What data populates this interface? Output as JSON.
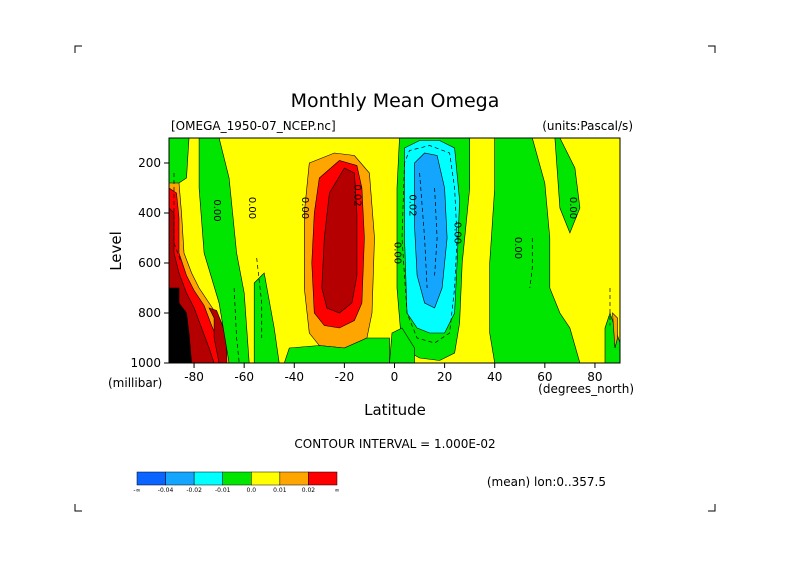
{
  "chart_data": {
    "type": "heatmap",
    "title": "Monthly Mean Omega",
    "dataset_label": "[OMEGA_1950-07_NCEP.nc]",
    "units_label": "(units:Pascal/s)",
    "xlabel": "Latitude",
    "x_units": "(degrees_north)",
    "ylabel": "Level",
    "y_units": "(millibar)",
    "x_range": [
      -90,
      90
    ],
    "y_range": [
      1000,
      100
    ],
    "y_reversed": true,
    "x_ticks": [
      -80,
      -60,
      -40,
      -20,
      0,
      20,
      40,
      60,
      80
    ],
    "y_ticks": [
      200,
      400,
      600,
      800,
      1000
    ],
    "contour_interval_text": "CONTOUR INTERVAL = 1.000E-02",
    "mean_note": "(mean) lon:0..357.5",
    "contour_labels": [
      {
        "text": "0.00",
        "lat": -72,
        "level": 390
      },
      {
        "text": "0.00",
        "lat": -58,
        "level": 380
      },
      {
        "text": "0.00",
        "lat": -37,
        "level": 380
      },
      {
        "text": "0.02",
        "lat": -16,
        "level": 330
      },
      {
        "text": "0.02",
        "lat": 6,
        "level": 370
      },
      {
        "text": "0.00",
        "lat": 24,
        "level": 480
      },
      {
        "text": "0.00",
        "lat": 0,
        "level": 560
      },
      {
        "text": "0.00",
        "lat": 48,
        "level": 540
      },
      {
        "text": "0.00",
        "lat": 70,
        "level": 380
      }
    ],
    "legend": {
      "colors": [
        "#0a64ff",
        "#14a5ff",
        "#00ffff",
        "#00e600",
        "#ffff00",
        "#ffa500",
        "#ff0000"
      ],
      "labels": [
        "-∞",
        "-0.04",
        "-0.02",
        "-0.01",
        "0.0",
        "0.01",
        "0.02",
        "∞"
      ]
    },
    "regions": [
      {
        "class": "pos1",
        "polygon": [
          [
            -90,
            1000
          ],
          [
            -88,
            900
          ],
          [
            -88,
            700
          ],
          [
            -90,
            600
          ]
        ]
      },
      {
        "class": "pos1",
        "polygon": [
          [
            -90,
            260
          ],
          [
            -86,
            280
          ],
          [
            -85,
            400
          ],
          [
            -84,
            560
          ],
          [
            -81,
            640
          ],
          [
            -78,
            700
          ],
          [
            -74,
            760
          ],
          [
            -70,
            820
          ],
          [
            -66,
            900
          ],
          [
            -64,
            980
          ],
          [
            -64,
            1000
          ],
          [
            -90,
            1000
          ]
        ]
      },
      {
        "class": "pos2",
        "polygon": [
          [
            -90,
            300
          ],
          [
            -87,
            320
          ],
          [
            -86,
            420
          ],
          [
            -86,
            560
          ],
          [
            -83,
            650
          ],
          [
            -80,
            710
          ],
          [
            -76,
            770
          ],
          [
            -73,
            850
          ],
          [
            -70,
            920
          ],
          [
            -68,
            1000
          ],
          [
            -90,
            1000
          ]
        ]
      },
      {
        "class": "pos1",
        "polygon": [
          [
            -64,
            780
          ],
          [
            -66,
            820
          ],
          [
            -67,
            900
          ],
          [
            -66,
            1000
          ],
          [
            -62,
            1000
          ],
          [
            -61,
            900
          ],
          [
            -62,
            820
          ]
        ]
      },
      {
        "class": "pos3",
        "polygon": [
          [
            -90,
            380
          ],
          [
            -88,
            400
          ],
          [
            -88,
            560
          ],
          [
            -86,
            640
          ],
          [
            -83,
            720
          ],
          [
            -80,
            780
          ],
          [
            -77,
            860
          ],
          [
            -74,
            940
          ],
          [
            -72,
            1000
          ],
          [
            -90,
            1000
          ]
        ]
      },
      {
        "class": "pos3",
        "polygon": [
          [
            -74,
            780
          ],
          [
            -72,
            820
          ],
          [
            -72,
            900
          ],
          [
            -70,
            1000
          ],
          [
            -67,
            1000
          ],
          [
            -67,
            900
          ],
          [
            -69,
            840
          ],
          [
            -71,
            790
          ]
        ]
      },
      {
        "class": "black",
        "polygon": [
          [
            -90,
            700
          ],
          [
            -86,
            700
          ],
          [
            -86,
            760
          ],
          [
            -83,
            800
          ],
          [
            -82,
            880
          ],
          [
            -81,
            1000
          ],
          [
            -90,
            1000
          ]
        ]
      },
      {
        "class": "neg1",
        "polygon": [
          [
            -78,
            100
          ],
          [
            -70,
            100
          ],
          [
            -66,
            260
          ],
          [
            -63,
            560
          ],
          [
            -60,
            720
          ],
          [
            -58,
            1000
          ],
          [
            -66,
            1000
          ],
          [
            -70,
            760
          ],
          [
            -76,
            560
          ],
          [
            -78,
            300
          ]
        ]
      },
      {
        "class": "neg1",
        "polygon": [
          [
            -94,
            100
          ],
          [
            -82,
            100
          ],
          [
            -83,
            260
          ],
          [
            -86,
            280
          ],
          [
            -94,
            280
          ]
        ]
      },
      {
        "class": "pos1",
        "polygon": [
          [
            -34,
            200
          ],
          [
            -24,
            160
          ],
          [
            -16,
            170
          ],
          [
            -10,
            240
          ],
          [
            -8,
            500
          ],
          [
            -9,
            800
          ],
          [
            -11,
            900
          ],
          [
            -20,
            940
          ],
          [
            -30,
            930
          ],
          [
            -34,
            880
          ],
          [
            -36,
            700
          ],
          [
            -36,
            400
          ]
        ]
      },
      {
        "class": "pos2",
        "polygon": [
          [
            -30,
            260
          ],
          [
            -22,
            190
          ],
          [
            -15,
            210
          ],
          [
            -13,
            300
          ],
          [
            -12,
            500
          ],
          [
            -13,
            760
          ],
          [
            -16,
            830
          ],
          [
            -22,
            860
          ],
          [
            -28,
            850
          ],
          [
            -32,
            800
          ],
          [
            -33,
            600
          ],
          [
            -32,
            400
          ]
        ]
      },
      {
        "class": "pos3",
        "polygon": [
          [
            -26,
            320
          ],
          [
            -20,
            220
          ],
          [
            -16,
            240
          ],
          [
            -15,
            400
          ],
          [
            -15,
            650
          ],
          [
            -17,
            760
          ],
          [
            -22,
            800
          ],
          [
            -27,
            780
          ],
          [
            -29,
            700
          ],
          [
            -28,
            500
          ]
        ]
      },
      {
        "class": "neg1",
        "polygon": [
          [
            2,
            100
          ],
          [
            30,
            100
          ],
          [
            30,
            300
          ],
          [
            27,
            600
          ],
          [
            26,
            840
          ],
          [
            24,
            960
          ],
          [
            18,
            990
          ],
          [
            10,
            980
          ],
          [
            3,
            940
          ],
          [
            1,
            700
          ],
          [
            1,
            300
          ]
        ]
      },
      {
        "class": "neg2",
        "polygon": [
          [
            4,
            140
          ],
          [
            10,
            110
          ],
          [
            18,
            110
          ],
          [
            24,
            140
          ],
          [
            26,
            350
          ],
          [
            25,
            600
          ],
          [
            24,
            800
          ],
          [
            20,
            880
          ],
          [
            14,
            880
          ],
          [
            9,
            860
          ],
          [
            5,
            800
          ],
          [
            4,
            500
          ]
        ]
      },
      {
        "class": "neg3",
        "polygon": [
          [
            8,
            200
          ],
          [
            12,
            160
          ],
          [
            17,
            170
          ],
          [
            20,
            300
          ],
          [
            21,
            500
          ],
          [
            19,
            700
          ],
          [
            16,
            780
          ],
          [
            12,
            760
          ],
          [
            9,
            650
          ],
          [
            8,
            450
          ]
        ]
      },
      {
        "class": "neg1",
        "polygon": [
          [
            40,
            100
          ],
          [
            55,
            100
          ],
          [
            60,
            280
          ],
          [
            62,
            500
          ],
          [
            62,
            700
          ],
          [
            66,
            800
          ],
          [
            70,
            860
          ],
          [
            74,
            1000
          ],
          [
            40,
            1000
          ],
          [
            38,
            880
          ],
          [
            38,
            600
          ],
          [
            40,
            300
          ]
        ]
      },
      {
        "class": "neg1",
        "polygon": [
          [
            64,
            100
          ],
          [
            66,
            100
          ],
          [
            72,
            220
          ],
          [
            74,
            380
          ],
          [
            70,
            480
          ],
          [
            66,
            380
          ]
        ]
      },
      {
        "class": "neg1",
        "polygon": [
          [
            -1,
            880
          ],
          [
            3,
            860
          ],
          [
            8,
            940
          ],
          [
            8,
            1000
          ],
          [
            -2,
            1000
          ]
        ]
      },
      {
        "class": "neg1",
        "polygon": [
          [
            -42,
            940
          ],
          [
            -30,
            930
          ],
          [
            -20,
            940
          ],
          [
            -11,
            900
          ],
          [
            -2,
            900
          ],
          [
            -2,
            1000
          ],
          [
            -44,
            1000
          ]
        ]
      },
      {
        "class": "neg1",
        "polygon": [
          [
            -56,
            680
          ],
          [
            -52,
            640
          ],
          [
            -48,
            860
          ],
          [
            -46,
            1000
          ],
          [
            -56,
            1000
          ]
        ]
      },
      {
        "class": "neg1",
        "polygon": [
          [
            84,
            860
          ],
          [
            86,
            800
          ],
          [
            88,
            860
          ],
          [
            90,
            920
          ],
          [
            90,
            1000
          ],
          [
            84,
            1000
          ]
        ]
      },
      {
        "class": "pos1",
        "polygon": [
          [
            87,
            800
          ],
          [
            89,
            820
          ],
          [
            89,
            900
          ],
          [
            88,
            940
          ]
        ]
      }
    ],
    "dashed_lines": [
      [
        [
          -88,
          240
        ],
        [
          -88,
          520
        ],
        [
          -85,
          600
        ]
      ],
      [
        [
          -64,
          700
        ],
        [
          -63,
          900
        ],
        [
          -62,
          1000
        ]
      ],
      [
        [
          -55,
          580
        ],
        [
          -53,
          760
        ],
        [
          -53,
          900
        ]
      ],
      [
        [
          4,
          200
        ],
        [
          3,
          500
        ],
        [
          5,
          800
        ],
        [
          9,
          900
        ],
        [
          16,
          920
        ],
        [
          22,
          880
        ],
        [
          24,
          700
        ],
        [
          25,
          500
        ],
        [
          24,
          300
        ],
        [
          22,
          160
        ],
        [
          14,
          130
        ],
        [
          6,
          150
        ],
        [
          4,
          200
        ]
      ],
      [
        [
          10,
          240
        ],
        [
          12,
          500
        ],
        [
          13,
          700
        ]
      ],
      [
        [
          16,
          300
        ],
        [
          17,
          500
        ],
        [
          16,
          650
        ]
      ],
      [
        [
          55,
          500
        ],
        [
          55,
          620
        ],
        [
          54,
          700
        ]
      ],
      [
        [
          86,
          700
        ],
        [
          86,
          850
        ]
      ]
    ]
  }
}
